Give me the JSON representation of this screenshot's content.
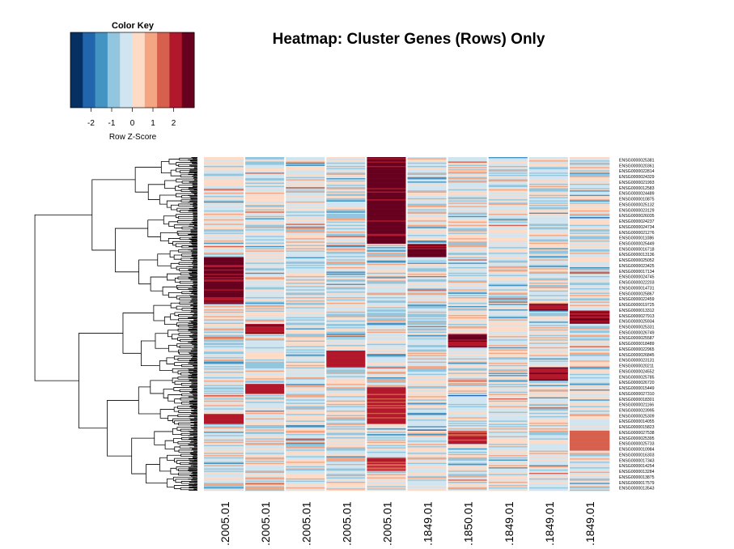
{
  "chart_data": {
    "type": "heatmap",
    "title": "Heatmap: Cluster Genes (Rows) Only",
    "color_key": {
      "title": "Color Key",
      "xlabel": "Row Z-Score",
      "ticks": [
        "-2",
        "-1",
        "0",
        "1",
        "2"
      ],
      "range": [
        -3,
        3
      ],
      "colors": [
        "#053061",
        "#2166ac",
        "#4393c3",
        "#92c5de",
        "#d1e5f0",
        "#fddbc7",
        "#f4a582",
        "#d6604d",
        "#b2182b",
        "#67001f"
      ]
    },
    "columns": [
      ".2005.01",
      ".2005.01",
      ".2005.01",
      ".2005.01",
      ".2005.01",
      ".1849.01",
      ".1850.01",
      ".1849.01",
      ".1849.01",
      ".1849.01"
    ],
    "row_labels": [
      "ENSG0000025381",
      "ENSG0000020361",
      "ENSG0000022814",
      "ENSG0000024329",
      "ENSG0000021993",
      "ENSG0000012583",
      "ENSG0000024489",
      "ENSG0000010875",
      "ENSG0000025132",
      "ENSG0000023129",
      "ENSG0000026035",
      "ENSG0000024237",
      "ENSG0000024734",
      "ENSG0000021276",
      "ENSG0000011086",
      "ENSG0000025449",
      "ENSG0000016718",
      "ENSG0000013136",
      "ENSG0000025052",
      "ENSG0000023425",
      "ENSG0000017134",
      "ENSG0000024745",
      "ENSG0000022203",
      "ENSG0000014731",
      "ENSG0000025867",
      "ENSG0000022459",
      "ENSG0000019725",
      "ENSG0000013312",
      "ENSG0000027913",
      "ENSG0000025934",
      "ENSG0000025331",
      "ENSG0000026749",
      "ENSG0000025587",
      "ENSG0000018489",
      "ENSG0000022965",
      "ENSG0000026845",
      "ENSG0000023131",
      "ENSG0000020211",
      "ENSG0000024552",
      "ENSG0000025785",
      "ENSG0000026720",
      "ENSG0000015449",
      "ENSG0000027310",
      "ENSG0000018301",
      "ENSG0000021166",
      "ENSG0000023995",
      "ENSG0000025309",
      "ENSG0000014055",
      "ENSG0000015823",
      "ENSG0000027538",
      "ENSG0000025395",
      "ENSG0000025733",
      "ENSG0000010984",
      "ENSG0000016303",
      "ENSG0000017343",
      "ENSG0000014254",
      "ENSG0000013284",
      "ENSG0000013875",
      "ENSG0000017579",
      "ENSG0000013543"
    ],
    "n_rows_drawn": 60,
    "blocks": [
      {
        "column": 5,
        "row_range": [
          0.0,
          0.26
        ],
        "value": 2.9
      },
      {
        "column": 1,
        "row_range": [
          0.3,
          0.44
        ],
        "value": 2.8
      },
      {
        "column": 6,
        "row_range": [
          0.26,
          0.3
        ],
        "value": 2.8
      },
      {
        "column": 2,
        "row_range": [
          0.5,
          0.53
        ],
        "value": 2.7
      },
      {
        "column": 7,
        "row_range": [
          0.53,
          0.57
        ],
        "value": 2.7
      },
      {
        "column": 4,
        "row_range": [
          0.58,
          0.63
        ],
        "value": 2.4
      },
      {
        "column": 10,
        "row_range": [
          0.46,
          0.5
        ],
        "value": 2.7
      },
      {
        "column": 9,
        "row_range": [
          0.44,
          0.46
        ],
        "value": 2.6
      },
      {
        "column": 9,
        "row_range": [
          0.63,
          0.67
        ],
        "value": 2.5
      },
      {
        "column": 5,
        "row_range": [
          0.69,
          0.8
        ],
        "value": 2.3
      },
      {
        "column": 1,
        "row_range": [
          0.77,
          0.8
        ],
        "value": 2.2
      },
      {
        "column": 2,
        "row_range": [
          0.68,
          0.71
        ],
        "value": 2.4
      },
      {
        "column": 7,
        "row_range": [
          0.82,
          0.86
        ],
        "value": 2.0
      },
      {
        "column": 10,
        "row_range": [
          0.82,
          0.88
        ],
        "value": 1.8
      },
      {
        "column": 5,
        "row_range": [
          0.9,
          0.94
        ],
        "value": 2.0
      }
    ],
    "grid": false,
    "legend": "top-left",
    "dendrogram": "left"
  }
}
